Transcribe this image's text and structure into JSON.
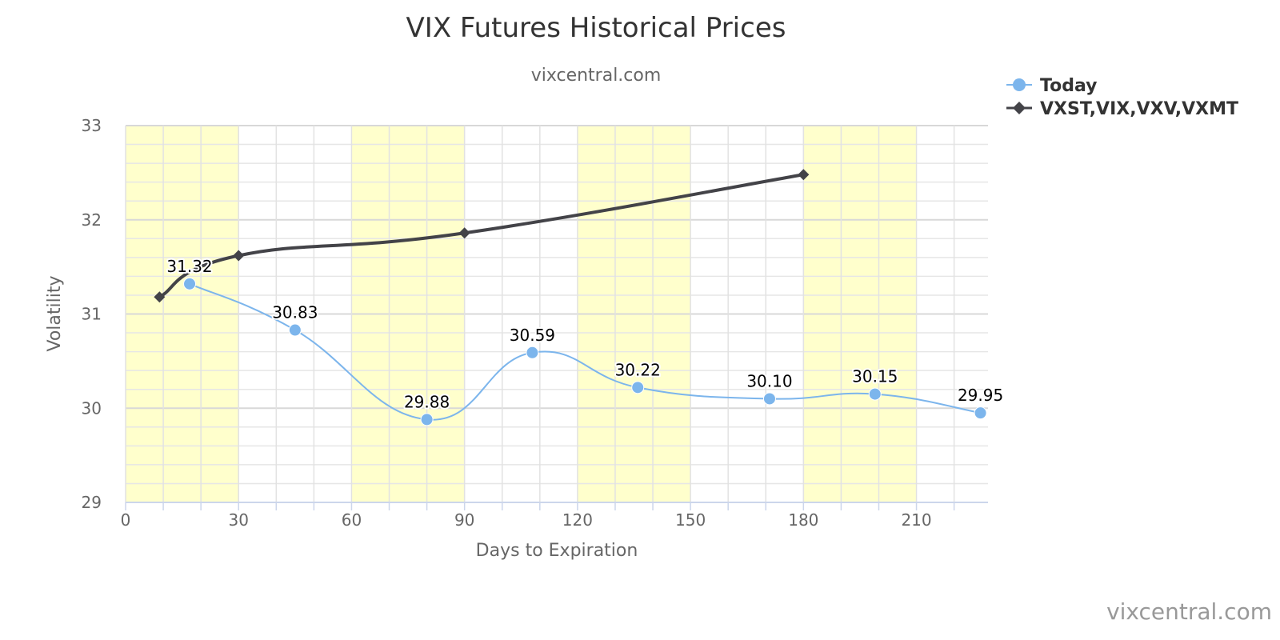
{
  "chart_data": {
    "type": "line",
    "title": "VIX Futures Historical Prices",
    "subtitle": "vixcentral.com",
    "xlabel": "Days to Expiration",
    "ylabel": "Volatility",
    "xlim": [
      0,
      229
    ],
    "ylim": [
      29,
      33
    ],
    "x_ticks": [
      0,
      30,
      60,
      90,
      120,
      150,
      180,
      210
    ],
    "y_ticks": [
      29,
      30,
      31,
      32,
      33
    ],
    "y_minor_step": 0.2,
    "x_minor_step": 10,
    "band_color": "#ffffcc",
    "bands": [
      [
        0,
        30
      ],
      [
        60,
        90
      ],
      [
        120,
        150
      ],
      [
        180,
        210
      ]
    ],
    "grid": true,
    "legend_position": "top-right",
    "series": [
      {
        "name": "Today",
        "color": "#7cb5ec",
        "marker": "circle",
        "smooth": true,
        "show_labels": true,
        "points": [
          {
            "x": 17,
            "y": 31.32,
            "label": "31.32"
          },
          {
            "x": 45,
            "y": 30.83,
            "label": "30.83"
          },
          {
            "x": 80,
            "y": 29.88,
            "label": "29.88"
          },
          {
            "x": 108,
            "y": 30.59,
            "label": "30.59"
          },
          {
            "x": 136,
            "y": 30.22,
            "label": "30.22"
          },
          {
            "x": 171,
            "y": 30.1,
            "label": "30.10"
          },
          {
            "x": 199,
            "y": 30.15,
            "label": "30.15"
          },
          {
            "x": 227,
            "y": 29.95,
            "label": "29.95"
          }
        ]
      },
      {
        "name": "VXST,VIX,VXV,VXMT",
        "color": "#434348",
        "marker": "diamond",
        "smooth": true,
        "show_labels": false,
        "points": [
          {
            "x": 9,
            "y": 31.18
          },
          {
            "x": 30,
            "y": 31.62
          },
          {
            "x": 90,
            "y": 31.86
          },
          {
            "x": 180,
            "y": 32.48
          }
        ]
      }
    ]
  },
  "credit": "vixcentral.com"
}
